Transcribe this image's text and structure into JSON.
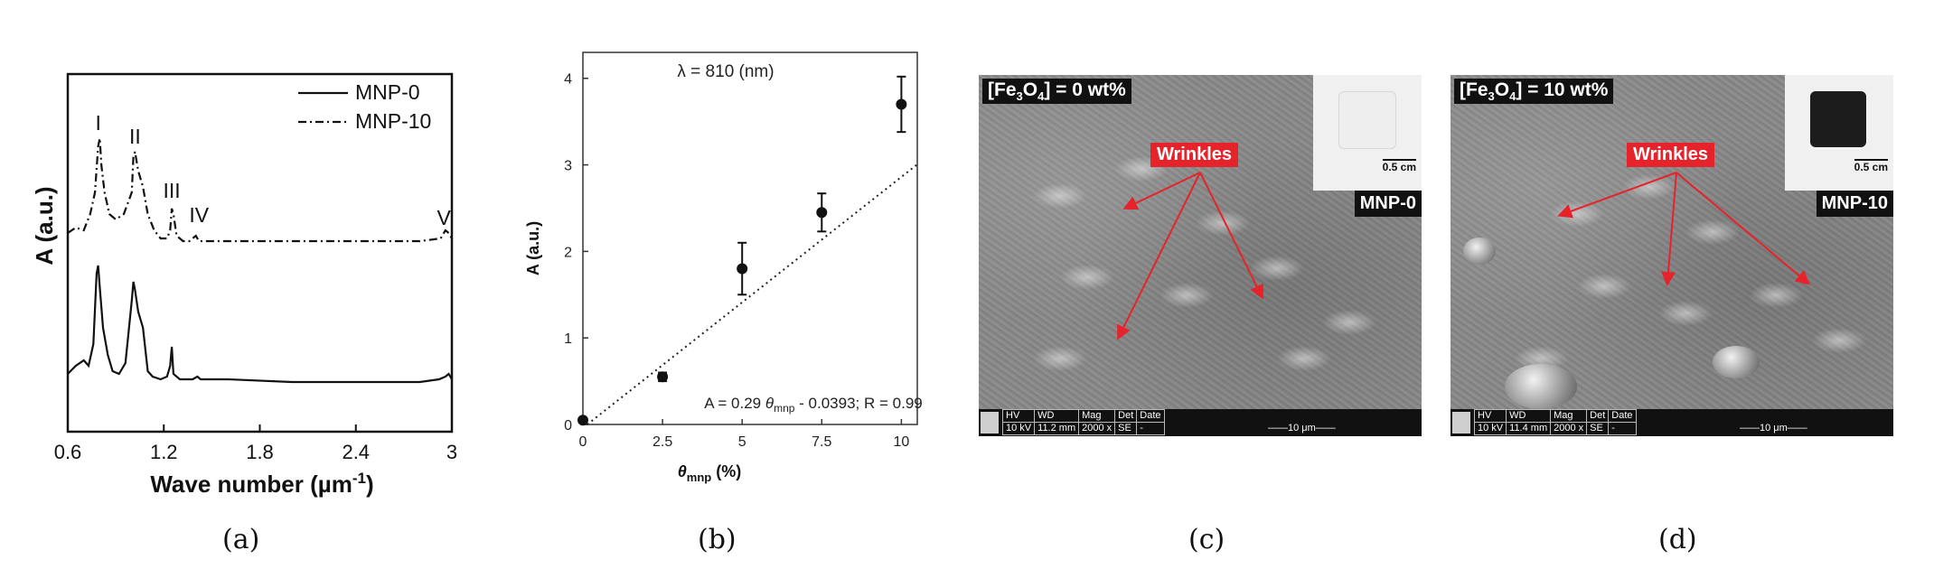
{
  "panel_a": {
    "caption": "(a)",
    "chart_data": {
      "type": "line",
      "xlabel": "Wave number (µm",
      "xlabel_sup": "-1",
      "xlabel_tail": ")",
      "ylabel": "A (a.u.)",
      "x_ticks": [
        "0.6",
        "1.2",
        "1.8",
        "2.4",
        "3"
      ],
      "xlim": [
        0.6,
        3.0
      ],
      "grid": false,
      "legend_position": "top-right",
      "series": [
        {
          "name": "MNP-0",
          "style": "solid",
          "x": [
            0.6,
            0.65,
            0.7,
            0.73,
            0.76,
            0.78,
            0.79,
            0.8,
            0.82,
            0.85,
            0.88,
            0.92,
            0.96,
            1.0,
            1.01,
            1.02,
            1.04,
            1.07,
            1.1,
            1.13,
            1.18,
            1.22,
            1.24,
            1.25,
            1.26,
            1.3,
            1.38,
            1.41,
            1.43,
            1.6,
            2.0,
            2.4,
            2.8,
            2.92,
            2.96,
            2.98,
            3.0
          ],
          "y": [
            0.03,
            0.06,
            0.08,
            0.06,
            0.14,
            0.4,
            0.43,
            0.35,
            0.2,
            0.1,
            0.04,
            0.03,
            0.07,
            0.3,
            0.37,
            0.34,
            0.26,
            0.2,
            0.04,
            0.02,
            0.01,
            0.02,
            0.06,
            0.13,
            0.03,
            0.01,
            0.01,
            0.02,
            0.01,
            0.01,
            0.0,
            0.0,
            0.0,
            0.01,
            0.02,
            0.03,
            0.01
          ]
        },
        {
          "name": "MNP-10",
          "style": "dash-dot",
          "x": [
            0.6,
            0.65,
            0.7,
            0.74,
            0.77,
            0.79,
            0.8,
            0.81,
            0.83,
            0.86,
            0.9,
            0.95,
            1.0,
            1.01,
            1.02,
            1.04,
            1.07,
            1.1,
            1.14,
            1.18,
            1.22,
            1.24,
            1.25,
            1.26,
            1.28,
            1.32,
            1.36,
            1.4,
            1.42,
            1.5,
            2.0,
            2.4,
            2.8,
            2.93,
            2.96,
            2.98,
            3.0
          ],
          "y": [
            0.55,
            0.57,
            0.56,
            0.62,
            0.7,
            0.87,
            0.9,
            0.8,
            0.7,
            0.62,
            0.6,
            0.62,
            0.7,
            0.83,
            0.85,
            0.78,
            0.72,
            0.62,
            0.56,
            0.53,
            0.53,
            0.56,
            0.64,
            0.62,
            0.54,
            0.52,
            0.52,
            0.54,
            0.52,
            0.52,
            0.52,
            0.52,
            0.52,
            0.53,
            0.56,
            0.55,
            0.53
          ]
        }
      ],
      "annotations": [
        {
          "text": "I",
          "x": 0.79,
          "y": 0.93
        },
        {
          "text": "II",
          "x": 1.02,
          "y": 0.88
        },
        {
          "text": "III",
          "x": 1.25,
          "y": 0.68
        },
        {
          "text": "IV",
          "x": 1.42,
          "y": 0.59
        },
        {
          "text": "V",
          "x": 2.95,
          "y": 0.58
        }
      ]
    }
  },
  "panel_b": {
    "caption": "(b)",
    "chart_data": {
      "type": "scatter",
      "title": "λ = 810 (nm)",
      "ylabel": "A (a.u.)",
      "xlabel_symbol": "θ",
      "xlabel_sub": "mnp",
      "xlabel_tail": " (%)",
      "x_ticks": [
        "0",
        "2.5",
        "5",
        "7.5",
        "10"
      ],
      "y_ticks": [
        "0",
        "1",
        "2",
        "3",
        "4"
      ],
      "xlim": [
        0,
        10.5
      ],
      "ylim": [
        0,
        4.3
      ],
      "grid": false,
      "points": {
        "x": [
          0,
          2.5,
          5,
          7.5,
          10
        ],
        "y": [
          0.05,
          0.55,
          1.8,
          2.45,
          3.7
        ],
        "yerr": [
          0.0,
          0.05,
          0.3,
          0.22,
          0.32
        ]
      },
      "fit": {
        "slope": 0.29,
        "intercept": -0.0393,
        "style": "dotted"
      },
      "equation_prefix": "A = 0.29 ",
      "equation_theta": "θ",
      "equation_sub": "mnp",
      "equation_suffix": " - 0.0393; R = 0.99"
    }
  },
  "panel_c": {
    "caption": "(c)",
    "label_prefix": "[Fe",
    "label_sub1": "3",
    "label_mid": "O",
    "label_sub2": "4",
    "label_suffix": "] = 0 wt%",
    "wrinkles": "Wrinkles",
    "scale": "0.5 cm",
    "sample": "MNP-0",
    "cube_color": "#eeeeee",
    "databar": {
      "headers": [
        "HV",
        "WD",
        "Mag",
        "Det",
        "Date"
      ],
      "values": [
        "10 kV",
        "11.2 mm",
        "2000 x",
        "SE",
        "-"
      ],
      "scale": "——10 μm——"
    }
  },
  "panel_d": {
    "caption": "(d)",
    "label_prefix": "[Fe",
    "label_sub1": "3",
    "label_mid": "O",
    "label_sub2": "4",
    "label_suffix": "] = 10 wt%",
    "wrinkles": "Wrinkles",
    "scale": "0.5 cm",
    "sample": "MNP-10",
    "cube_color": "#1c1c1c",
    "databar": {
      "headers": [
        "HV",
        "WD",
        "Mag",
        "Det",
        "Date"
      ],
      "values": [
        "10 kV",
        "11.4 mm",
        "2000 x",
        "SE",
        "-"
      ],
      "scale": "——10 μm——"
    }
  }
}
